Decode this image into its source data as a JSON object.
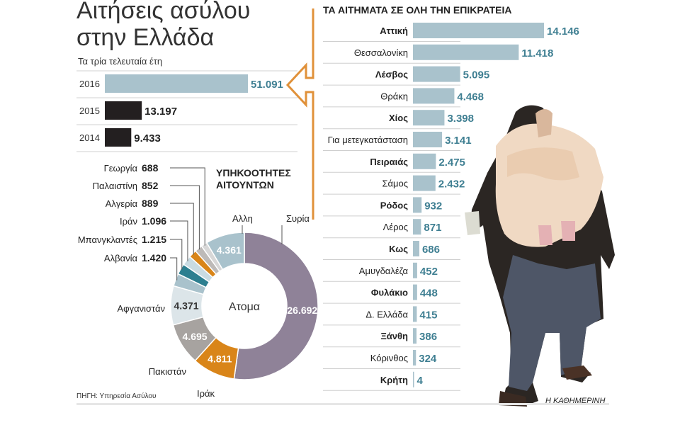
{
  "title_lines": [
    "Αιτήσεις ασύλου",
    "στην Ελλάδα"
  ],
  "subtitle": "Τα τρία τελευταία έτη",
  "region_title": "ΤΑ ΑΙΤΗΜΑΤΑ ΣΕ ΟΛΗ ΤΗΝ ΕΠΙΚΡΑΤΕΙΑ",
  "nationality_title_lines": [
    "ΥΠΗΚΟΟΤΗΤΕΣ",
    "ΑΙΤΟΥΝΤΩΝ"
  ],
  "donut_center_label": "Ατομα",
  "source": "ΠΗΓΗ: Υπηρεσία Ασύλου",
  "credit": "Η ΚΑΘΗΜΕΡΙΝΗ",
  "colors": {
    "light_blue": "#a9c2cc",
    "dark": "#231f20",
    "blue_text": "#3f7f92",
    "purple": "#8f8298",
    "orange": "#d98519",
    "gray": "#a7a3a0",
    "pale_blue": "#c9dbe2",
    "teal": "#2d7f90",
    "arrow": "#e0913a"
  },
  "chart_data": [
    {
      "type": "bar",
      "orientation": "horizontal",
      "categories": [
        "2016",
        "2015",
        "2014"
      ],
      "values": [
        51091,
        13197,
        9433
      ],
      "value_labels": [
        "51.091",
        "13.197",
        "9.433"
      ]
    },
    {
      "type": "bar",
      "orientation": "horizontal",
      "title": "ΤΑ ΑΙΤΗΜΑΤΑ ΣΕ ΟΛΗ ΤΗΝ ΕΠΙΚΡΑΤΕΙΑ",
      "categories": [
        "Αττική",
        "Θεσσαλονίκη",
        "Λέσβος",
        "Θράκη",
        "Χίος",
        "Για μετεγκατάσταση",
        "Πειραιάς",
        "Σάμος",
        "Ρόδος",
        "Λέρος",
        "Κως",
        "Αμυγδαλέζα",
        "Φυλάκιο",
        "Δ. Ελλάδα",
        "Ξάνθη",
        "Κόρινθος",
        "Κρήτη"
      ],
      "bold": [
        true,
        false,
        true,
        false,
        true,
        false,
        true,
        false,
        true,
        false,
        true,
        false,
        true,
        false,
        true,
        false,
        true
      ],
      "values": [
        14146,
        11418,
        5095,
        4468,
        3398,
        3141,
        2475,
        2432,
        932,
        871,
        686,
        452,
        448,
        415,
        386,
        324,
        4
      ],
      "value_labels": [
        "14.146",
        "11.418",
        "5.095",
        "4.468",
        "3.398",
        "3.141",
        "2.475",
        "2.432",
        "932",
        "871",
        "686",
        "452",
        "448",
        "415",
        "386",
        "324",
        "4"
      ]
    },
    {
      "type": "pie",
      "variant": "donut",
      "title": "ΥΠΗΚΟΟΤΗΤΕΣ ΑΙΤΟΥΝΤΩΝ",
      "center_label": "Ατομα",
      "slices": [
        {
          "name": "Συρία",
          "value": 26692,
          "label": "26.692",
          "color": "#8f8298"
        },
        {
          "name": "Ιράκ",
          "value": 4811,
          "label": "4.811",
          "color": "#d98519"
        },
        {
          "name": "Πακιστάν",
          "value": 4695,
          "label": "4.695",
          "color": "#a7a3a0"
        },
        {
          "name": "Αφγανιστάν",
          "value": 4371,
          "label": "4.371",
          "color": "#dce5e9"
        },
        {
          "name": "Αλβανία",
          "value": 1420,
          "label": "1.420",
          "color": "#a9c2cc"
        },
        {
          "name": "Μπανγκλαντές",
          "value": 1215,
          "label": "1.215",
          "color": "#2d7f90"
        },
        {
          "name": "Ιράν",
          "value": 1096,
          "label": "1.096",
          "color": "#c9dbe2"
        },
        {
          "name": "Αλγερία",
          "value": 889,
          "label": "889",
          "color": "#d98519"
        },
        {
          "name": "Παλαιστίνη",
          "value": 852,
          "label": "852",
          "color": "#bdbab8"
        },
        {
          "name": "Γεωργία",
          "value": 688,
          "label": "688",
          "color": "#d7d7d7"
        },
        {
          "name": "Αλλη",
          "value": 4361,
          "label": "4.361",
          "color": "#a9c2cc"
        }
      ]
    }
  ]
}
